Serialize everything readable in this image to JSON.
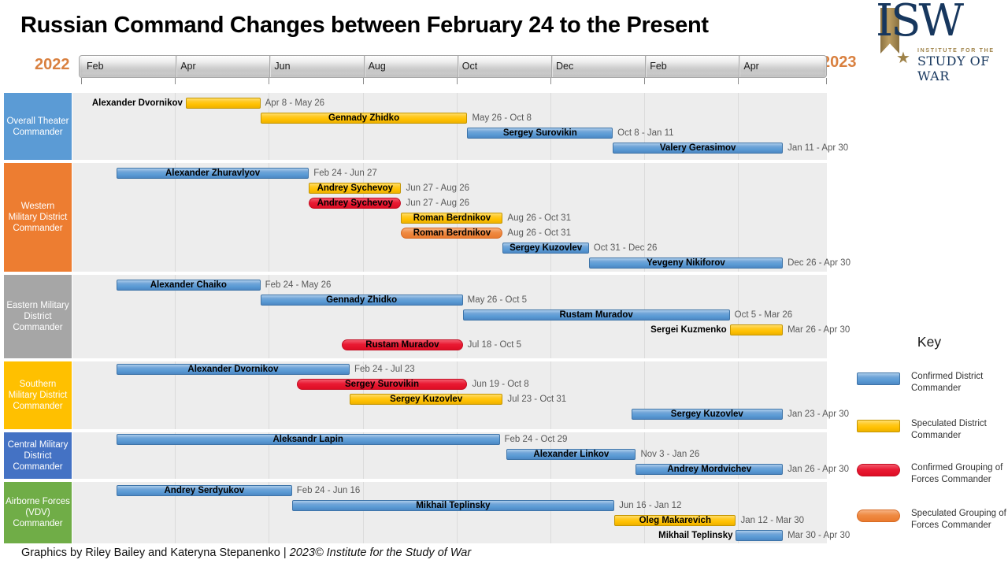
{
  "title": "Russian Command Changes between February 24 to the Present",
  "logo": {
    "acronym": "ISW",
    "star": "★",
    "line1": "INSTITUTE FOR THE",
    "line2": "STUDY OF WAR"
  },
  "footer": {
    "credits": "Graphics by Riley Bailey and Kateryna Stepanenko | ",
    "copyright": "2023© Institute for the Study of War"
  },
  "legend": {
    "title": "Key",
    "items": [
      {
        "label": "Confirmed District Commander",
        "type": "confirmed_district",
        "color": "#5B9BD5"
      },
      {
        "label": "Speculated District Commander",
        "type": "speculated_district",
        "color": "#FFC000"
      },
      {
        "label": "Confirmed Grouping of Forces Commander",
        "type": "confirmed_gof",
        "color": "#E8112D"
      },
      {
        "label": "Speculated Grouping of Forces Commander",
        "type": "speculated_gof",
        "color": "#ED7D31"
      }
    ]
  },
  "chart_data": {
    "type": "gantt",
    "x_axis": {
      "year_left": "2022",
      "year_right": "2023",
      "tick_labels": [
        "Feb",
        "Apr",
        "Jun",
        "Aug",
        "Oct",
        "Dec",
        "Feb",
        "Apr"
      ],
      "start": "2022-02-01",
      "end": "2023-06-01"
    },
    "sections": [
      {
        "label": "Overall Theater Commander",
        "color": "#5B9BD5",
        "bars": [
          {
            "name": "Alexander Dvornikov",
            "type": "speculated_district",
            "start": "2022-04-08",
            "end": "2022-05-26",
            "dates": "Apr 8 - May 26",
            "name_pos": "left"
          },
          {
            "name": "Gennady Zhidko",
            "type": "speculated_district",
            "start": "2022-05-26",
            "end": "2022-10-08",
            "dates": "May 26 - Oct 8",
            "name_pos": "inside"
          },
          {
            "name": "Sergey Surovikin",
            "type": "confirmed_district",
            "start": "2022-10-08",
            "end": "2023-01-11",
            "dates": "Oct 8 - Jan 11",
            "name_pos": "inside"
          },
          {
            "name": "Valery Gerasimov",
            "type": "confirmed_district",
            "start": "2023-01-11",
            "end": "2023-04-30",
            "dates": "Jan 11 - Apr 30",
            "name_pos": "inside"
          }
        ]
      },
      {
        "label": "Western Military District Commander",
        "color": "#ED7D31",
        "bars": [
          {
            "name": "Alexander Zhuravlyov",
            "type": "confirmed_district",
            "start": "2022-02-24",
            "end": "2022-06-27",
            "dates": "Feb 24 - Jun 27",
            "name_pos": "inside"
          },
          {
            "name": "Andrey Sychevoy",
            "type": "speculated_district",
            "start": "2022-06-27",
            "end": "2022-08-26",
            "dates": "Jun 27 - Aug 26",
            "name_pos": "inside"
          },
          {
            "name": "Andrey Sychevoy",
            "type": "confirmed_gof",
            "start": "2022-06-27",
            "end": "2022-08-26",
            "dates": "Jun 27 - Aug 26",
            "name_pos": "inside"
          },
          {
            "name": "Roman Berdnikov",
            "type": "speculated_district",
            "start": "2022-08-26",
            "end": "2022-10-31",
            "dates": "Aug 26 - Oct 31",
            "name_pos": "inside"
          },
          {
            "name": "Roman Berdnikov",
            "type": "speculated_gof",
            "start": "2022-08-26",
            "end": "2022-10-31",
            "dates": "Aug 26 - Oct 31",
            "name_pos": "inside"
          },
          {
            "name": "Sergey Kuzovlev",
            "type": "confirmed_district",
            "start": "2022-10-31",
            "end": "2022-12-26",
            "dates": "Oct 31 - Dec 26",
            "name_pos": "inside"
          },
          {
            "name": "Yevgeny Nikiforov",
            "type": "confirmed_district",
            "start": "2022-12-26",
            "end": "2023-04-30",
            "dates": "Dec 26 - Apr 30",
            "name_pos": "inside"
          }
        ]
      },
      {
        "label": "Eastern Military District Commander",
        "color": "#A6A6A6",
        "bars": [
          {
            "name": "Alexander Chaiko",
            "type": "confirmed_district",
            "start": "2022-02-24",
            "end": "2022-05-26",
            "dates": "Feb 24 - May 26",
            "name_pos": "inside"
          },
          {
            "name": "Gennady Zhidko",
            "type": "confirmed_district",
            "start": "2022-05-26",
            "end": "2022-10-05",
            "dates": "May 26 - Oct 5",
            "name_pos": "inside"
          },
          {
            "name": "Rustam Muradov",
            "type": "confirmed_district",
            "start": "2022-10-05",
            "end": "2023-03-26",
            "dates": "Oct 5 - Mar 26",
            "name_pos": "inside"
          },
          {
            "name": "Sergei Kuzmenko",
            "type": "speculated_district",
            "start": "2023-03-26",
            "end": "2023-04-30",
            "dates": "Mar 26 - Apr 30",
            "name_pos": "left"
          },
          {
            "name": "Rustam Muradov",
            "type": "confirmed_gof",
            "start": "2022-07-18",
            "end": "2022-10-05",
            "dates": "Jul 18 - Oct 5",
            "name_pos": "inside"
          }
        ]
      },
      {
        "label": "Southern Military District Commander",
        "color": "#FFC000",
        "bars": [
          {
            "name": "Alexander Dvornikov",
            "type": "confirmed_district",
            "start": "2022-02-24",
            "end": "2022-07-23",
            "dates": "Feb 24 - Jul 23",
            "name_pos": "inside"
          },
          {
            "name": "Sergey Surovikin",
            "type": "confirmed_gof",
            "start": "2022-06-19",
            "end": "2022-10-08",
            "dates": "Jun 19 - Oct 8",
            "name_pos": "inside"
          },
          {
            "name": "Sergey Kuzovlev",
            "type": "speculated_district",
            "start": "2022-07-23",
            "end": "2022-10-31",
            "dates": "Jul 23 - Oct 31",
            "name_pos": "inside"
          },
          {
            "name": "Sergey Kuzovlev",
            "type": "confirmed_district",
            "start": "2023-01-23",
            "end": "2023-04-30",
            "dates": "Jan 23 - Apr 30",
            "name_pos": "inside"
          }
        ]
      },
      {
        "label": "Central Military District Commander",
        "color": "#4472C4",
        "bars": [
          {
            "name": "Aleksandr Lapin",
            "type": "confirmed_district",
            "start": "2022-02-24",
            "end": "2022-10-29",
            "dates": "Feb 24 - Oct 29",
            "name_pos": "inside"
          },
          {
            "name": "Alexander Linkov",
            "type": "confirmed_district",
            "start": "2022-11-03",
            "end": "2023-01-26",
            "dates": "Nov 3 - Jan 26",
            "name_pos": "inside"
          },
          {
            "name": "Andrey Mordvichev",
            "type": "confirmed_district",
            "start": "2023-01-26",
            "end": "2023-04-30",
            "dates": "Jan 26 - Apr 30",
            "name_pos": "inside"
          }
        ]
      },
      {
        "label": "Airborne Forces (VDV) Commander",
        "color": "#70AD47",
        "bars": [
          {
            "name": "Andrey Serdyukov",
            "type": "confirmed_district",
            "start": "2022-02-24",
            "end": "2022-06-16",
            "dates": "Feb 24 - Jun 16",
            "name_pos": "inside"
          },
          {
            "name": "Mikhail Teplinsky",
            "type": "confirmed_district",
            "start": "2022-06-16",
            "end": "2023-01-12",
            "dates": "Jun 16 - Jan 12",
            "name_pos": "inside"
          },
          {
            "name": "Oleg Makarevich",
            "type": "speculated_district",
            "start": "2023-01-12",
            "end": "2023-03-30",
            "dates": "Jan 12 - Mar 30",
            "name_pos": "inside"
          },
          {
            "name": "Mikhail Teplinsky",
            "type": "confirmed_district",
            "start": "2023-03-30",
            "end": "2023-04-30",
            "dates": "Mar 30 - Apr 30",
            "name_pos": "left"
          }
        ]
      }
    ]
  }
}
